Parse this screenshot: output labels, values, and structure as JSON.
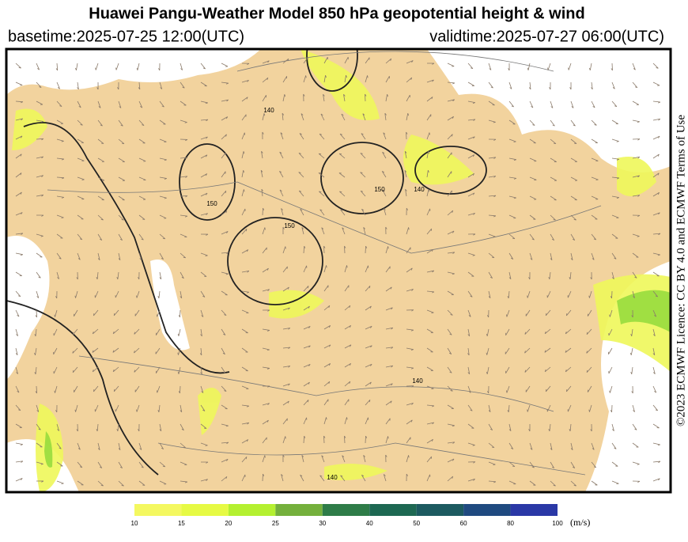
{
  "header": {
    "title": "Huawei Pangu-Weather Model 850 hPa geopotential height & wind",
    "basetime": "basetime:2025-07-25 12:00(UTC)",
    "validtime": "validtime:2025-07-27 06:00(UTC)"
  },
  "license": "©2023 ECMWF Licence: CC BY 4.0 and ECMWF Terms of Use",
  "map": {
    "contour_labels": [
      "140",
      "150",
      "150",
      "140",
      "150",
      "140",
      "140"
    ]
  },
  "colorbar": {
    "bins": [
      10,
      15,
      20,
      25,
      30,
      40,
      50,
      60,
      80,
      100
    ],
    "colors": [
      "#f4f860",
      "#e6fa44",
      "#b4f030",
      "#74b03c",
      "#2e7c48",
      "#1d6852",
      "#1c5a60",
      "#1f4a80",
      "#2a38a6"
    ],
    "unit": "(m/s)"
  }
}
